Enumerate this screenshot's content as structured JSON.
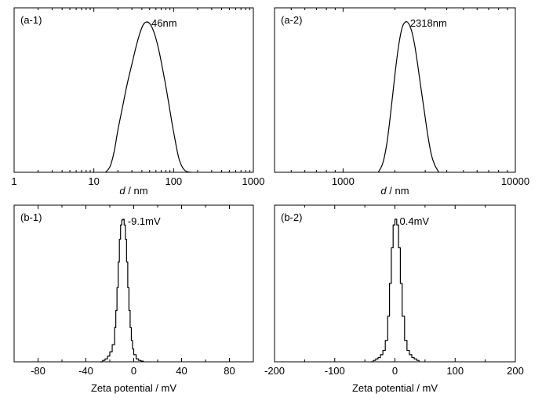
{
  "figure": {
    "width_label": "",
    "panels": 4
  },
  "chart_data": [
    {
      "id": "a1",
      "type": "line",
      "scale": "log",
      "panel_label": "(a-1)",
      "peak_label": "46nm",
      "xlabel_italic": "d",
      "xlabel_unit": " / nm",
      "xlim": [
        1,
        1000
      ],
      "ylim": [
        0,
        1
      ],
      "x_ticks": [
        1,
        10,
        100,
        1000
      ],
      "x_tick_labels": [
        "1",
        "10",
        "100",
        "1000"
      ],
      "x": [
        14,
        16,
        18,
        20,
        23,
        26,
        30,
        34,
        38,
        42,
        46,
        50,
        55,
        60,
        66,
        72,
        80,
        88,
        96,
        104,
        112,
        120,
        130,
        140,
        150,
        165
      ],
      "y": [
        0.0,
        0.04,
        0.14,
        0.28,
        0.44,
        0.58,
        0.72,
        0.84,
        0.93,
        0.985,
        1.0,
        0.99,
        0.95,
        0.89,
        0.8,
        0.7,
        0.57,
        0.44,
        0.32,
        0.22,
        0.13,
        0.07,
        0.03,
        0.01,
        0.003,
        0.0
      ]
    },
    {
      "id": "a2",
      "type": "line",
      "scale": "log",
      "panel_label": "(a-2)",
      "peak_label": "2318nm",
      "xlabel_italic": "d",
      "xlabel_unit": " / nm",
      "xlim": [
        400,
        10000
      ],
      "ylim": [
        0,
        1
      ],
      "x_ticks": [
        1000,
        10000
      ],
      "x_tick_labels": [
        "1000",
        "10000"
      ],
      "x": [
        1600,
        1700,
        1800,
        1900,
        2000,
        2100,
        2200,
        2300,
        2400,
        2500,
        2600,
        2700,
        2800,
        2950,
        3100,
        3250,
        3400,
        3600
      ],
      "y": [
        0.0,
        0.06,
        0.2,
        0.42,
        0.65,
        0.84,
        0.96,
        1.0,
        0.99,
        0.94,
        0.85,
        0.73,
        0.6,
        0.42,
        0.25,
        0.12,
        0.05,
        0.0
      ]
    },
    {
      "id": "b1",
      "type": "line",
      "scale": "linear",
      "step": true,
      "panel_label": "(b-1)",
      "peak_label": "-9.1mV",
      "xlabel": "Zeta potential / mV",
      "xlim": [
        -100,
        100
      ],
      "ylim": [
        0,
        1
      ],
      "x_ticks": [
        -80,
        -40,
        0,
        40,
        80
      ],
      "x_tick_labels": [
        "-80",
        "-40",
        "0",
        "40",
        "80"
      ],
      "x": [
        -28,
        -26,
        -24,
        -22,
        -20,
        -18,
        -16,
        -15,
        -14,
        -13,
        -12,
        -11,
        -10,
        -9,
        -8,
        -7,
        -6,
        -5,
        -4,
        -3,
        -2,
        -1,
        0,
        2,
        4,
        6,
        8
      ],
      "y": [
        0.0,
        0.01,
        0.02,
        0.04,
        0.07,
        0.12,
        0.24,
        0.36,
        0.52,
        0.7,
        0.86,
        0.96,
        0.995,
        1.0,
        0.96,
        0.86,
        0.7,
        0.52,
        0.36,
        0.24,
        0.15,
        0.09,
        0.05,
        0.02,
        0.01,
        0.005,
        0.0
      ]
    },
    {
      "id": "b2",
      "type": "line",
      "scale": "linear",
      "step": true,
      "panel_label": "(b-2)",
      "peak_label": "0.4mV",
      "xlabel": "Zeta potential / mV",
      "xlim": [
        -200,
        200
      ],
      "ylim": [
        0,
        1
      ],
      "x_ticks": [
        -200,
        -100,
        0,
        100,
        200
      ],
      "x_tick_labels": [
        "-200",
        "-100",
        "0",
        "100",
        "200"
      ],
      "x": [
        -40,
        -36,
        -32,
        -28,
        -24,
        -20,
        -16,
        -12,
        -9,
        -6,
        -3,
        0,
        3,
        6,
        9,
        12,
        16,
        20,
        24,
        28,
        32,
        36,
        40
      ],
      "y": [
        0.0,
        0.01,
        0.02,
        0.03,
        0.05,
        0.08,
        0.15,
        0.32,
        0.55,
        0.8,
        0.96,
        1.0,
        0.96,
        0.8,
        0.55,
        0.32,
        0.15,
        0.08,
        0.05,
        0.03,
        0.02,
        0.01,
        0.0
      ]
    }
  ]
}
